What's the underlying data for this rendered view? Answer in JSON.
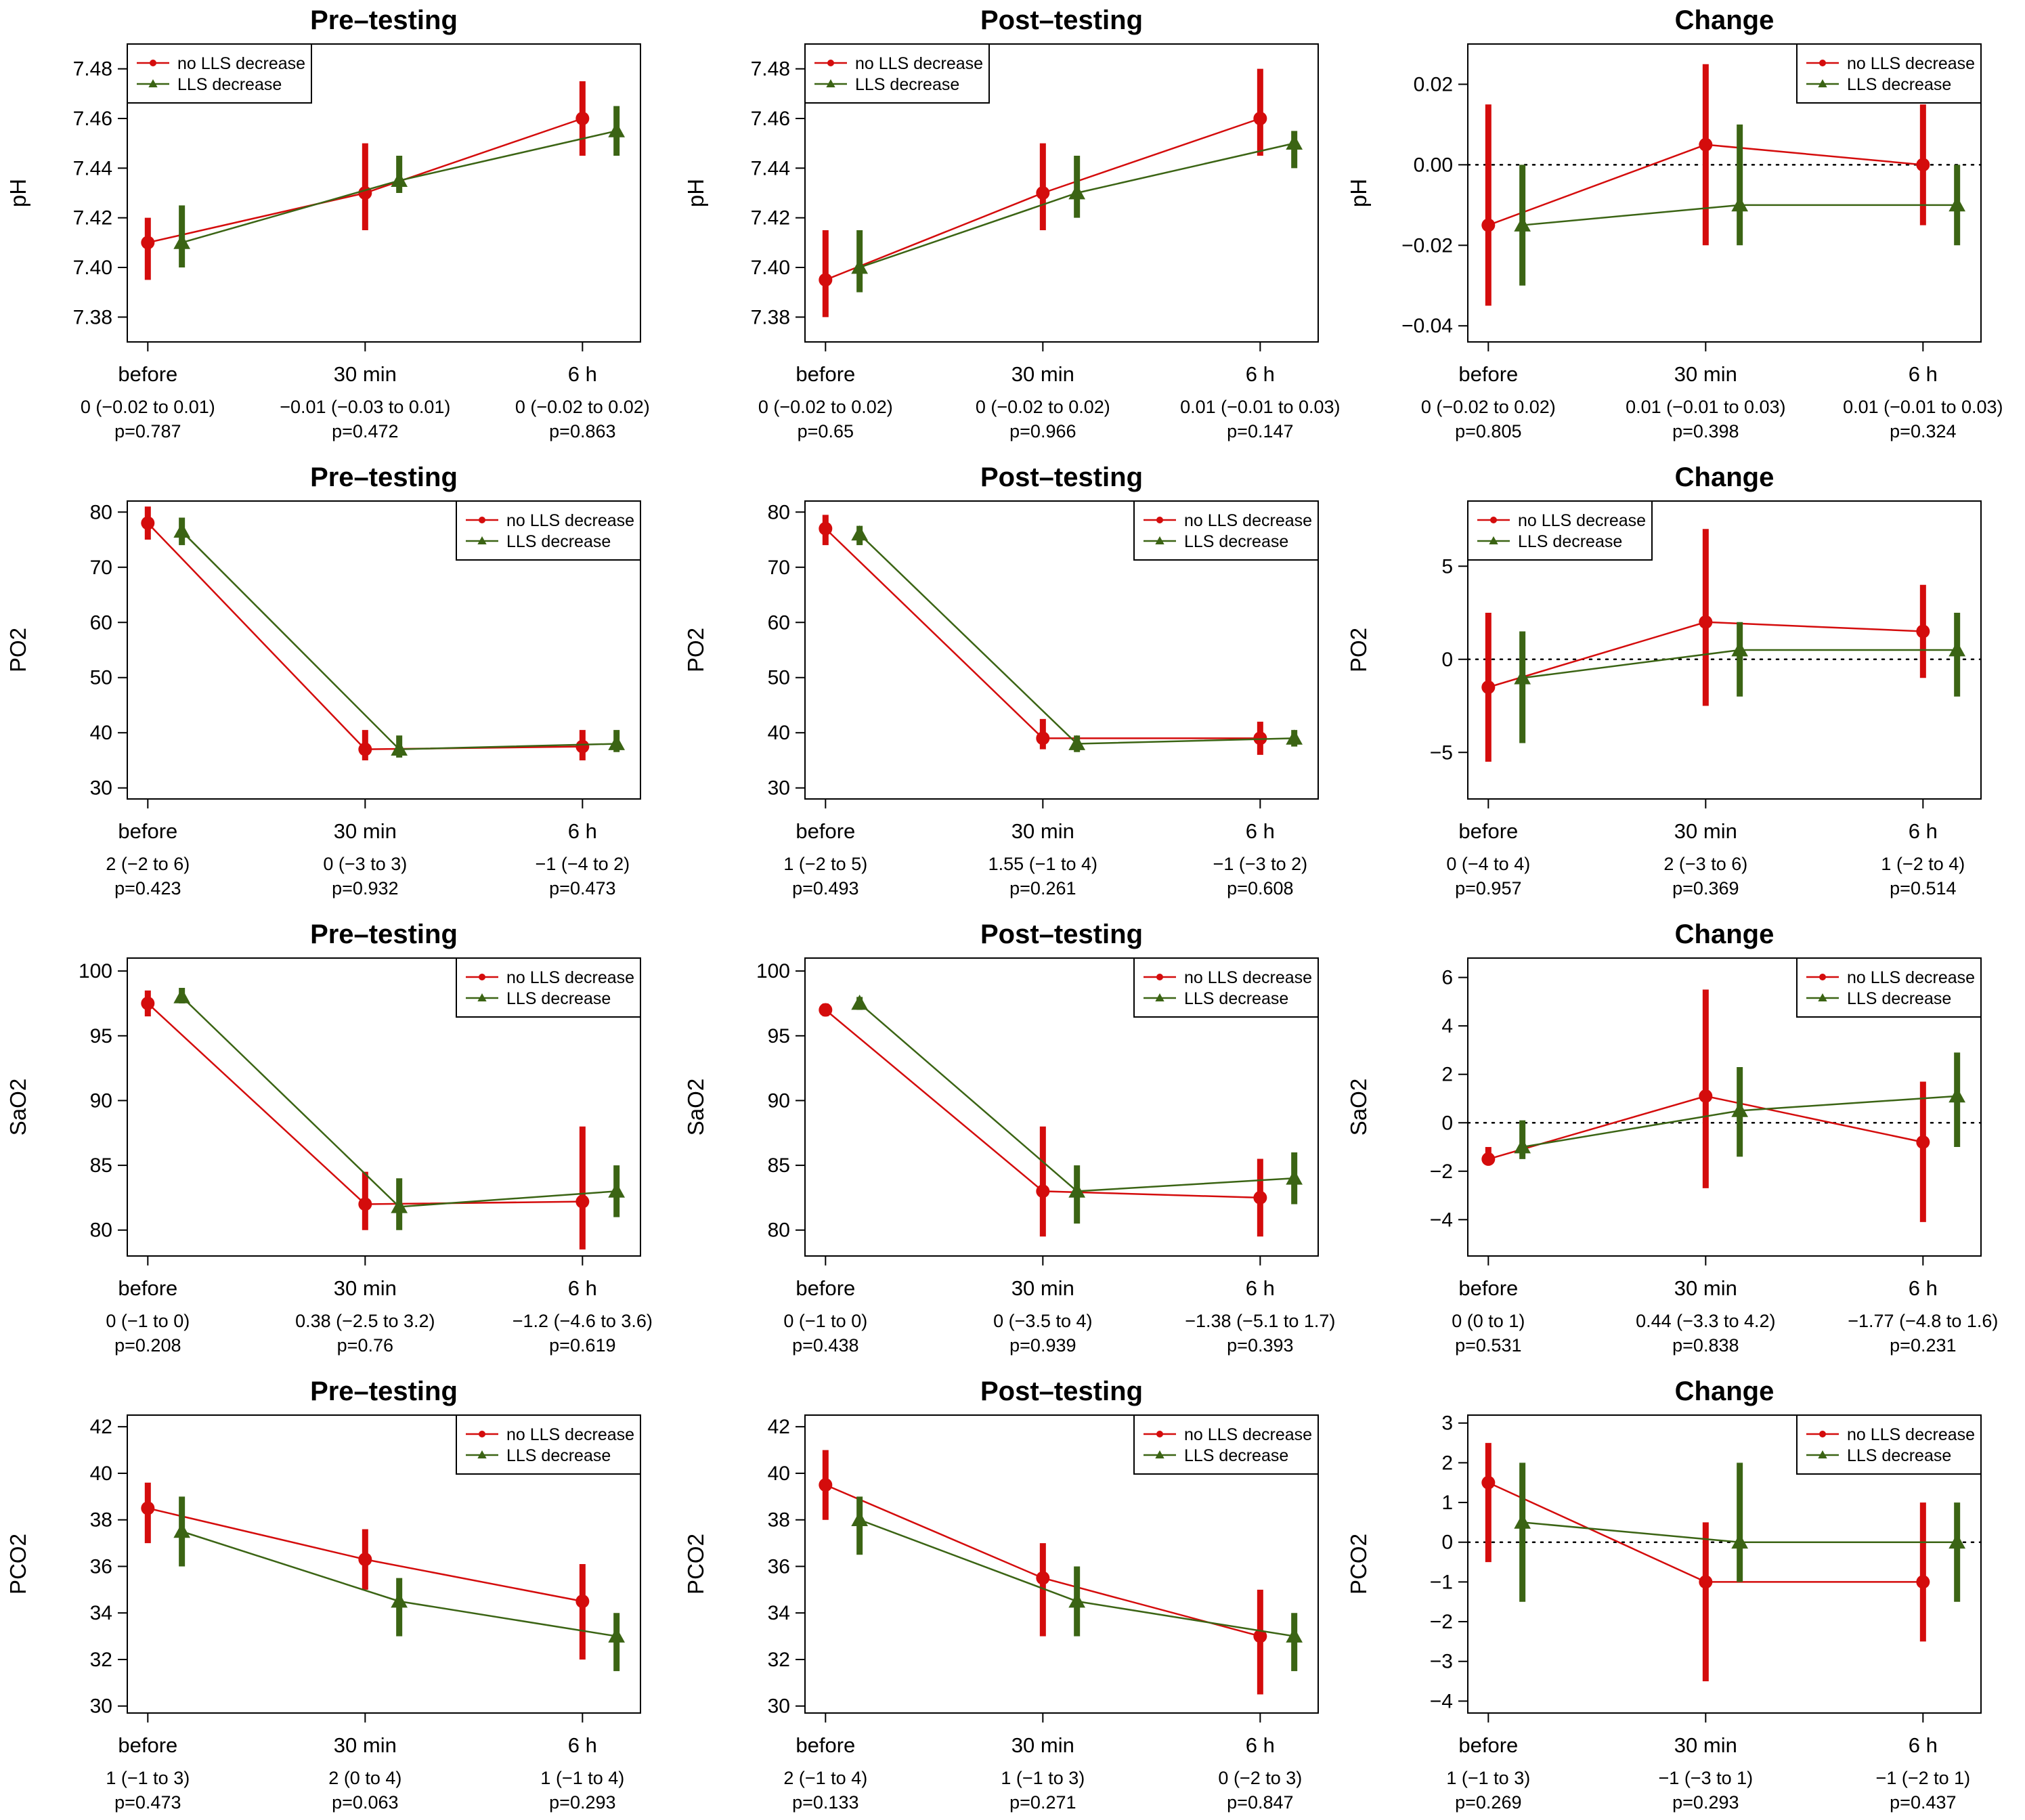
{
  "colors": {
    "no_decrease": "#d40c0c",
    "decrease": "#3b6414",
    "axis": "#000000"
  },
  "legend": {
    "no_decrease": "no LLS decrease",
    "decrease": "LLS decrease"
  },
  "chart_data": [
    {
      "type": "line",
      "title": "Pre–testing",
      "ylabel": "pH",
      "ylim": [
        7.37,
        7.49
      ],
      "yticks": [
        "7.38",
        "7.40",
        "7.42",
        "7.44",
        "7.46",
        "7.48"
      ],
      "categories": [
        "before",
        "30 min",
        "6 h"
      ],
      "stats": [
        "0 (−0.02 to 0.01)",
        "−0.01 (−0.03 to 0.01)",
        "0 (−0.02 to 0.02)"
      ],
      "pvalues": [
        "p=0.787",
        "p=0.472",
        "p=0.863"
      ],
      "zero_line": false,
      "legend_position": "top-left",
      "series": [
        {
          "name": "no LLS decrease",
          "values": [
            7.41,
            7.43,
            7.46
          ],
          "lower": [
            7.395,
            7.415,
            7.445
          ],
          "upper": [
            7.42,
            7.45,
            7.475
          ]
        },
        {
          "name": "LLS decrease",
          "values": [
            7.41,
            7.435,
            7.455
          ],
          "lower": [
            7.4,
            7.43,
            7.445
          ],
          "upper": [
            7.425,
            7.445,
            7.465
          ]
        }
      ]
    },
    {
      "type": "line",
      "title": "Post–testing",
      "ylabel": "pH",
      "ylim": [
        7.37,
        7.49
      ],
      "yticks": [
        "7.38",
        "7.40",
        "7.42",
        "7.44",
        "7.46",
        "7.48"
      ],
      "categories": [
        "before",
        "30 min",
        "6 h"
      ],
      "stats": [
        "0 (−0.02 to 0.02)",
        "0 (−0.02 to 0.02)",
        "0.01 (−0.01 to 0.03)"
      ],
      "pvalues": [
        "p=0.65",
        "p=0.966",
        "p=0.147"
      ],
      "zero_line": false,
      "legend_position": "top-left",
      "series": [
        {
          "name": "no LLS decrease",
          "values": [
            7.395,
            7.43,
            7.46
          ],
          "lower": [
            7.38,
            7.415,
            7.445
          ],
          "upper": [
            7.415,
            7.45,
            7.48
          ]
        },
        {
          "name": "LLS decrease",
          "values": [
            7.4,
            7.43,
            7.45
          ],
          "lower": [
            7.39,
            7.42,
            7.44
          ],
          "upper": [
            7.415,
            7.445,
            7.455
          ]
        }
      ]
    },
    {
      "type": "line",
      "title": "Change",
      "ylabel": "pH",
      "ylim": [
        -0.044,
        0.03
      ],
      "yticks": [
        "−0.04",
        "−0.02",
        "0.00",
        "0.02"
      ],
      "categories": [
        "before",
        "30 min",
        "6 h"
      ],
      "stats": [
        "0 (−0.02 to 0.02)",
        "0.01 (−0.01 to 0.03)",
        "0.01 (−0.01 to 0.03)"
      ],
      "pvalues": [
        "p=0.805",
        "p=0.398",
        "p=0.324"
      ],
      "zero_line": true,
      "legend_position": "top-right",
      "series": [
        {
          "name": "no LLS decrease",
          "values": [
            -0.015,
            0.005,
            0.0
          ],
          "lower": [
            -0.035,
            -0.02,
            -0.015
          ],
          "upper": [
            0.015,
            0.025,
            0.015
          ]
        },
        {
          "name": "LLS decrease",
          "values": [
            -0.015,
            -0.01,
            -0.01
          ],
          "lower": [
            -0.03,
            -0.02,
            -0.02
          ],
          "upper": [
            0.0,
            0.01,
            0.0
          ]
        }
      ]
    },
    {
      "type": "line",
      "title": "Pre–testing",
      "ylabel": "PO2",
      "ylim": [
        28,
        82
      ],
      "yticks": [
        "30",
        "40",
        "50",
        "60",
        "70",
        "80"
      ],
      "categories": [
        "before",
        "30 min",
        "6 h"
      ],
      "stats": [
        "2 (−2 to 6)",
        "0 (−3 to 3)",
        "−1 (−4 to 2)"
      ],
      "pvalues": [
        "p=0.423",
        "p=0.932",
        "p=0.473"
      ],
      "zero_line": false,
      "legend_position": "top-right",
      "series": [
        {
          "name": "no LLS decrease",
          "values": [
            78,
            37,
            37.5
          ],
          "lower": [
            75,
            35,
            35
          ],
          "upper": [
            81,
            40.5,
            40.5
          ]
        },
        {
          "name": "LLS decrease",
          "values": [
            76.5,
            37,
            38
          ],
          "lower": [
            74,
            35.5,
            36.5
          ],
          "upper": [
            79,
            39.5,
            40.5
          ]
        }
      ]
    },
    {
      "type": "line",
      "title": "Post–testing",
      "ylabel": "PO2",
      "ylim": [
        28,
        82
      ],
      "yticks": [
        "30",
        "40",
        "50",
        "60",
        "70",
        "80"
      ],
      "categories": [
        "before",
        "30 min",
        "6 h"
      ],
      "stats": [
        "1 (−2 to 5)",
        "1.55 (−1 to 4)",
        "−1 (−3 to 2)"
      ],
      "pvalues": [
        "p=0.493",
        "p=0.261",
        "p=0.608"
      ],
      "zero_line": false,
      "legend_position": "top-right",
      "series": [
        {
          "name": "no LLS decrease",
          "values": [
            77,
            39,
            39
          ],
          "lower": [
            74,
            37,
            36
          ],
          "upper": [
            79.5,
            42.5,
            42
          ]
        },
        {
          "name": "LLS decrease",
          "values": [
            76,
            38,
            39
          ],
          "lower": [
            74,
            36.5,
            37.5
          ],
          "upper": [
            77.5,
            39.5,
            40.5
          ]
        }
      ]
    },
    {
      "type": "line",
      "title": "Change",
      "ylabel": "PO2",
      "ylim": [
        -7.5,
        8.5
      ],
      "yticks": [
        "−5",
        "0",
        "5"
      ],
      "categories": [
        "before",
        "30 min",
        "6 h"
      ],
      "stats": [
        "0 (−4 to 4)",
        "2 (−3 to 6)",
        "1 (−2 to 4)"
      ],
      "pvalues": [
        "p=0.957",
        "p=0.369",
        "p=0.514"
      ],
      "zero_line": true,
      "legend_position": "top-left",
      "series": [
        {
          "name": "no LLS decrease",
          "values": [
            -1.5,
            2,
            1.5
          ],
          "lower": [
            -5.5,
            -2.5,
            -1
          ],
          "upper": [
            2.5,
            7,
            4
          ]
        },
        {
          "name": "LLS decrease",
          "values": [
            -1,
            0.5,
            0.5
          ],
          "lower": [
            -4.5,
            -2,
            -2
          ],
          "upper": [
            1.5,
            2,
            2.5
          ]
        }
      ]
    },
    {
      "type": "line",
      "title": "Pre–testing",
      "ylabel": "SaO2",
      "ylim": [
        78,
        101
      ],
      "yticks": [
        "80",
        "85",
        "90",
        "95",
        "100"
      ],
      "categories": [
        "before",
        "30 min",
        "6 h"
      ],
      "stats": [
        "0 (−1 to 0)",
        "0.38 (−2.5 to 3.2)",
        "−1.2 (−4.6 to 3.6)"
      ],
      "pvalues": [
        "p=0.208",
        "p=0.76",
        "p=0.619"
      ],
      "zero_line": false,
      "legend_position": "top-right",
      "series": [
        {
          "name": "no LLS decrease",
          "values": [
            97.5,
            82,
            82.2
          ],
          "lower": [
            96.5,
            80,
            78.5
          ],
          "upper": [
            98.5,
            84.5,
            88
          ]
        },
        {
          "name": "LLS decrease",
          "values": [
            98,
            81.8,
            83
          ],
          "lower": [
            97.5,
            80,
            81
          ],
          "upper": [
            98.7,
            84,
            85
          ]
        }
      ]
    },
    {
      "type": "line",
      "title": "Post–testing",
      "ylabel": "SaO2",
      "ylim": [
        78,
        101
      ],
      "yticks": [
        "80",
        "85",
        "90",
        "95",
        "100"
      ],
      "categories": [
        "before",
        "30 min",
        "6 h"
      ],
      "stats": [
        "0 (−1 to 0)",
        "0 (−3.5 to 4)",
        "−1.38 (−5.1 to 1.7)"
      ],
      "pvalues": [
        "p=0.438",
        "p=0.939",
        "p=0.393"
      ],
      "zero_line": false,
      "legend_position": "top-right",
      "series": [
        {
          "name": "no LLS decrease",
          "values": [
            97,
            83,
            82.5
          ],
          "lower": [
            96.5,
            79.5,
            79.5
          ],
          "upper": [
            97.5,
            88,
            85.5
          ]
        },
        {
          "name": "LLS decrease",
          "values": [
            97.5,
            83,
            84
          ],
          "lower": [
            97,
            80.5,
            82
          ],
          "upper": [
            98,
            85,
            86
          ]
        }
      ]
    },
    {
      "type": "line",
      "title": "Change",
      "ylabel": "SaO2",
      "ylim": [
        -5.5,
        6.8
      ],
      "yticks": [
        "−4",
        "−2",
        "0",
        "2",
        "4",
        "6"
      ],
      "categories": [
        "before",
        "30 min",
        "6 h"
      ],
      "stats": [
        "0 (0 to 1)",
        "0.44 (−3.3 to 4.2)",
        "−1.77 (−4.8 to 1.6)"
      ],
      "pvalues": [
        "p=0.531",
        "p=0.838",
        "p=0.231"
      ],
      "zero_line": true,
      "legend_position": "top-right",
      "series": [
        {
          "name": "no LLS decrease",
          "values": [
            -1.5,
            1.1,
            -0.8
          ],
          "lower": [
            -1.7,
            -2.7,
            -4.1
          ],
          "upper": [
            -1.0,
            5.5,
            1.7
          ]
        },
        {
          "name": "LLS decrease",
          "values": [
            -1,
            0.5,
            1.1
          ],
          "lower": [
            -1.5,
            -1.4,
            -1.0
          ],
          "upper": [
            0.1,
            2.3,
            2.9
          ]
        }
      ]
    },
    {
      "type": "line",
      "title": "Pre–testing",
      "ylabel": "PCO2",
      "ylim": [
        29.7,
        42.5
      ],
      "yticks": [
        "30",
        "32",
        "34",
        "36",
        "38",
        "40",
        "42"
      ],
      "categories": [
        "before",
        "30 min",
        "6 h"
      ],
      "stats": [
        "1 (−1 to 3)",
        "2 (0 to 4)",
        "1 (−1 to 4)"
      ],
      "pvalues": [
        "p=0.473",
        "p=0.063",
        "p=0.293"
      ],
      "zero_line": false,
      "legend_position": "top-right",
      "series": [
        {
          "name": "no LLS decrease",
          "values": [
            38.5,
            36.3,
            34.5
          ],
          "lower": [
            37,
            35,
            32
          ],
          "upper": [
            39.6,
            37.6,
            36.1
          ]
        },
        {
          "name": "LLS decrease",
          "values": [
            37.5,
            34.5,
            33
          ],
          "lower": [
            36,
            33,
            31.5
          ],
          "upper": [
            39,
            35.5,
            34
          ]
        }
      ]
    },
    {
      "type": "line",
      "title": "Post–testing",
      "ylabel": "PCO2",
      "ylim": [
        29.7,
        42.5
      ],
      "yticks": [
        "30",
        "32",
        "34",
        "36",
        "38",
        "40",
        "42"
      ],
      "categories": [
        "before",
        "30 min",
        "6 h"
      ],
      "stats": [
        "2 (−1 to 4)",
        "1 (−1 to 3)",
        "0 (−2 to 3)"
      ],
      "pvalues": [
        "p=0.133",
        "p=0.271",
        "p=0.847"
      ],
      "zero_line": false,
      "legend_position": "top-right",
      "series": [
        {
          "name": "no LLS decrease",
          "values": [
            39.5,
            35.5,
            33
          ],
          "lower": [
            38,
            33,
            30.5
          ],
          "upper": [
            41,
            37,
            35
          ]
        },
        {
          "name": "LLS decrease",
          "values": [
            38,
            34.5,
            33
          ],
          "lower": [
            36.5,
            33,
            31.5
          ],
          "upper": [
            39,
            36,
            34
          ]
        }
      ]
    },
    {
      "type": "line",
      "title": "Change",
      "ylabel": "PCO2",
      "ylim": [
        -4.3,
        3.2
      ],
      "yticks": [
        "−4",
        "−3",
        "−2",
        "−1",
        "0",
        "1",
        "2",
        "3"
      ],
      "categories": [
        "before",
        "30 min",
        "6 h"
      ],
      "stats": [
        "1 (−1 to 3)",
        "−1 (−3 to 1)",
        "−1 (−2 to 1)"
      ],
      "pvalues": [
        "p=0.269",
        "p=0.293",
        "p=0.437"
      ],
      "zero_line": true,
      "legend_position": "top-right",
      "series": [
        {
          "name": "no LLS decrease",
          "values": [
            1.5,
            -1,
            -1
          ],
          "lower": [
            -0.5,
            -3.5,
            -2.5
          ],
          "upper": [
            2.5,
            0.5,
            1
          ]
        },
        {
          "name": "LLS decrease",
          "values": [
            0.5,
            0,
            0
          ],
          "lower": [
            -1.5,
            -1,
            -1.5
          ],
          "upper": [
            2,
            2,
            1
          ]
        }
      ]
    }
  ]
}
